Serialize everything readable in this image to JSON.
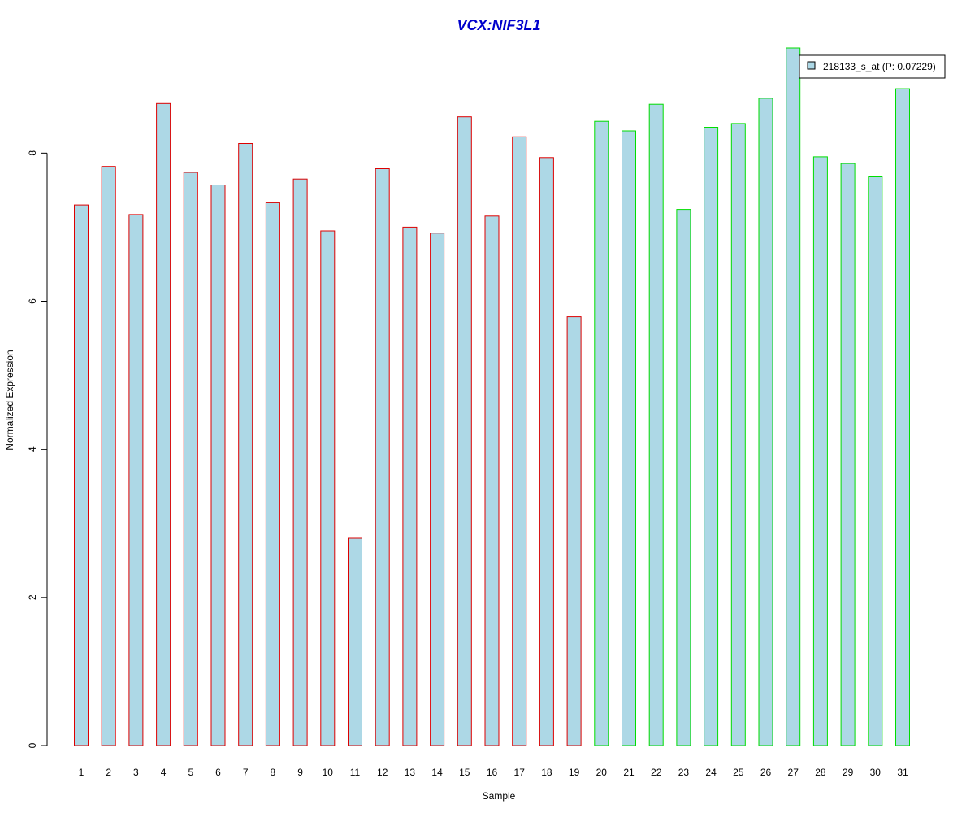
{
  "chart_data": {
    "type": "bar",
    "title": "VCX:NIF3L1",
    "xlabel": "Sample",
    "ylabel": "Normalized Expression",
    "categories": [
      "1",
      "2",
      "3",
      "4",
      "5",
      "6",
      "7",
      "8",
      "9",
      "10",
      "11",
      "12",
      "13",
      "14",
      "15",
      "16",
      "17",
      "18",
      "19",
      "20",
      "21",
      "22",
      "23",
      "24",
      "25",
      "26",
      "27",
      "28",
      "29",
      "30",
      "31"
    ],
    "series": [
      {
        "name": "218133_s_at (P: 0.07229)",
        "values": [
          7.3,
          7.82,
          7.17,
          8.67,
          7.74,
          7.57,
          8.13,
          7.33,
          7.65,
          6.95,
          2.8,
          7.79,
          7.0,
          6.92,
          8.49,
          7.15,
          8.22,
          7.94,
          5.79,
          8.43,
          8.3,
          8.66,
          7.24,
          8.35,
          8.4,
          8.74,
          9.42,
          7.95,
          7.86,
          7.68,
          8.87
        ]
      }
    ],
    "group_border_colors": [
      "#dd0000",
      "#dd0000",
      "#dd0000",
      "#dd0000",
      "#dd0000",
      "#dd0000",
      "#dd0000",
      "#dd0000",
      "#dd0000",
      "#dd0000",
      "#dd0000",
      "#dd0000",
      "#dd0000",
      "#dd0000",
      "#dd0000",
      "#dd0000",
      "#dd0000",
      "#dd0000",
      "#dd0000",
      "#00dd00",
      "#00dd00",
      "#00dd00",
      "#00dd00",
      "#00dd00",
      "#00dd00",
      "#00dd00",
      "#00dd00",
      "#00dd00",
      "#00dd00",
      "#00dd00",
      "#00dd00"
    ],
    "bar_fill": "#add8e6",
    "yticks": [
      0,
      2,
      4,
      6,
      8
    ],
    "ylim": [
      0,
      9.42
    ],
    "grid": false,
    "legend_position": "top-right",
    "title_color": "#0000cc"
  }
}
